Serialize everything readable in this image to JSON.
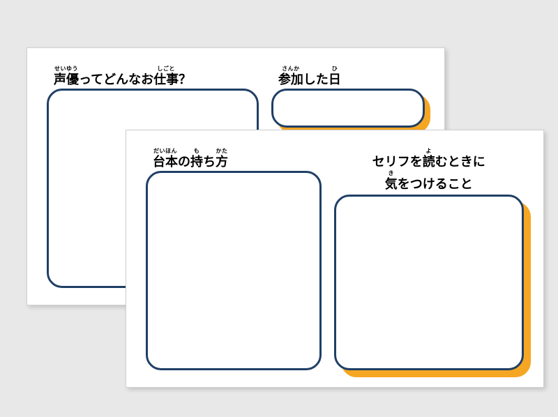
{
  "colors": {
    "border": "#1f3f66",
    "accent": "#f5a623",
    "card_bg": "#ffffff",
    "page_bg": "#e8e8e8",
    "text": "#000000"
  },
  "stroke_width": 3,
  "corner_radius": 22,
  "back": {
    "left_title": {
      "segments": [
        {
          "base": "声優",
          "furi": "せいゆう"
        },
        {
          "plain": "ってどんなお"
        },
        {
          "base": "仕事",
          "furi": "しごと"
        },
        {
          "plain": "？"
        }
      ]
    },
    "right_title": {
      "segments": [
        {
          "base": "参加",
          "furi": "さんか"
        },
        {
          "plain": "した"
        },
        {
          "base": "日",
          "furi": "ひ"
        }
      ]
    }
  },
  "front": {
    "left_title": {
      "segments": [
        {
          "base": "台本",
          "furi": "だいほん"
        },
        {
          "plain": "の"
        },
        {
          "base": "持",
          "furi": "も"
        },
        {
          "plain": "ち"
        },
        {
          "base": "方",
          "furi": "かた"
        }
      ]
    },
    "right_title_line1": {
      "segments": [
        {
          "plain": "セリフを"
        },
        {
          "base": "読",
          "furi": "よ"
        },
        {
          "plain": "むときに"
        }
      ]
    },
    "right_title_line2": {
      "segments": [
        {
          "base": "気",
          "furi": "き"
        },
        {
          "plain": "をつけること"
        }
      ]
    }
  }
}
